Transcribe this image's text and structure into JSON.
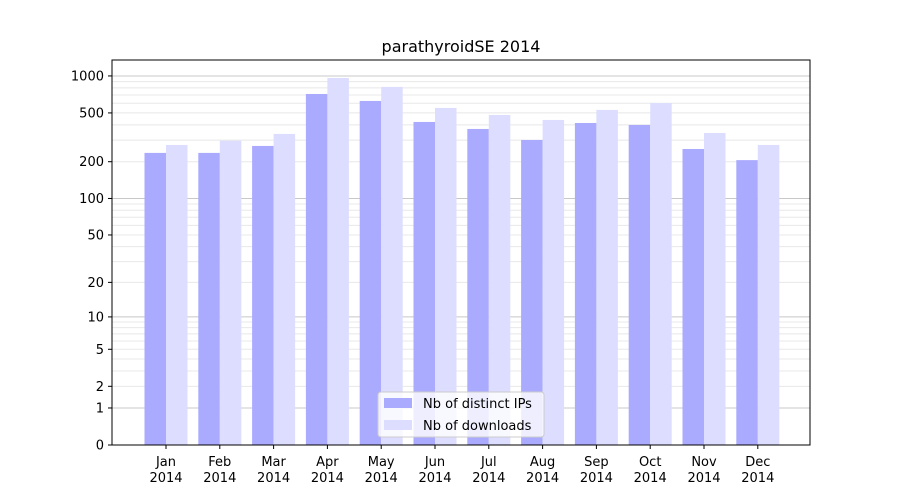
{
  "chart_data": {
    "type": "bar",
    "title": "parathyroidSE 2014",
    "xlabel": "",
    "ylabel": "",
    "yscale": "log10(1+y)",
    "ylim": [
      0,
      1300
    ],
    "yticks": [
      0,
      1,
      2,
      5,
      10,
      20,
      50,
      100,
      200,
      500,
      1000
    ],
    "grid": true,
    "legend_position": "lower-center",
    "categories": [
      "Jan\n2014",
      "Feb\n2014",
      "Mar\n2014",
      "Apr\n2014",
      "May\n2014",
      "Jun\n2014",
      "Jul\n2014",
      "Aug\n2014",
      "Sep\n2014",
      "Oct\n2014",
      "Nov\n2014",
      "Dec\n2014"
    ],
    "series": [
      {
        "name": "Nb of distinct IPs",
        "color": "#aaaaff",
        "values": [
          236,
          236,
          269,
          713,
          626,
          422,
          370,
          301,
          414,
          399,
          254,
          206
        ]
      },
      {
        "name": "Nb of downloads",
        "color": "#ddddff",
        "values": [
          274,
          297,
          337,
          963,
          814,
          549,
          481,
          438,
          529,
          602,
          343,
          274
        ]
      }
    ]
  }
}
